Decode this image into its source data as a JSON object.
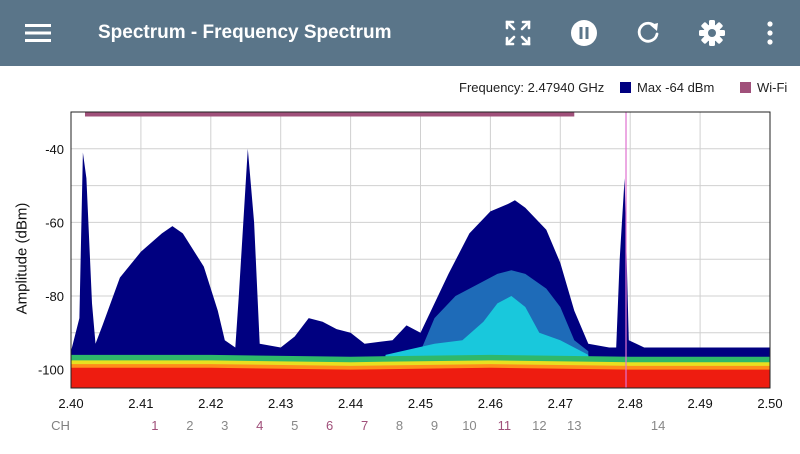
{
  "toolbar": {
    "title": "Spectrum - Frequency Spectrum",
    "icons": [
      "menu-icon",
      "fullscreen-icon",
      "pause-icon",
      "refresh-icon",
      "settings-icon",
      "more-vert-icon"
    ]
  },
  "legend": {
    "frequency": "Frequency: 2.47940 GHz",
    "max_label": "Max -64 dBm",
    "max_color": "#000080",
    "wifi_label": "Wi-Fi",
    "wifi_color": "#a0507a"
  },
  "chart_data": {
    "type": "area",
    "ylabel": "Amplitude (dBm)",
    "xlim": [
      2.4,
      2.5
    ],
    "ylim": [
      -105,
      -30
    ],
    "x_ticks": [
      "2.40",
      "2.41",
      "2.42",
      "2.43",
      "2.44",
      "2.45",
      "2.46",
      "2.47",
      "2.48",
      "2.49",
      "2.50"
    ],
    "y_ticks": [
      -40,
      -60,
      -80,
      -100
    ],
    "grid": true,
    "wifi_band": [
      2.402,
      2.472
    ],
    "marker_frequency": 2.4794,
    "max_trace": [
      [
        2.4,
        -95
      ],
      [
        2.4012,
        -86
      ],
      [
        2.4017,
        -41
      ],
      [
        2.4022,
        -48
      ],
      [
        2.403,
        -82
      ],
      [
        2.4035,
        -93
      ],
      [
        2.4045,
        -88
      ],
      [
        2.407,
        -75
      ],
      [
        2.41,
        -68
      ],
      [
        2.413,
        -63
      ],
      [
        2.4145,
        -61
      ],
      [
        2.416,
        -63
      ],
      [
        2.419,
        -72
      ],
      [
        2.421,
        -84
      ],
      [
        2.422,
        -92
      ],
      [
        2.4235,
        -94
      ],
      [
        2.424,
        -80
      ],
      [
        2.4253,
        -40
      ],
      [
        2.4262,
        -60
      ],
      [
        2.427,
        -93
      ],
      [
        2.43,
        -94
      ],
      [
        2.432,
        -91
      ],
      [
        2.434,
        -86
      ],
      [
        2.436,
        -87
      ],
      [
        2.438,
        -89
      ],
      [
        2.44,
        -90
      ],
      [
        2.442,
        -93
      ],
      [
        2.446,
        -92
      ],
      [
        2.448,
        -88
      ],
      [
        2.45,
        -90
      ],
      [
        2.4515,
        -84
      ],
      [
        2.454,
        -74
      ],
      [
        2.457,
        -63
      ],
      [
        2.46,
        -57
      ],
      [
        2.4625,
        -55
      ],
      [
        2.4635,
        -54
      ],
      [
        2.465,
        -56
      ],
      [
        2.468,
        -62
      ],
      [
        2.47,
        -71
      ],
      [
        2.472,
        -84
      ],
      [
        2.474,
        -93
      ],
      [
        2.477,
        -94
      ],
      [
        2.478,
        -94
      ],
      [
        2.4785,
        -70
      ],
      [
        2.4792,
        -48
      ],
      [
        2.4798,
        -92
      ],
      [
        2.482,
        -94
      ],
      [
        2.49,
        -94
      ],
      [
        2.5,
        -94
      ]
    ],
    "fill_layers": [
      {
        "name": "",
        "color": "#1e6bb8",
        "points": [
          [
            2.45,
            -95
          ],
          [
            2.452,
            -86
          ],
          [
            2.455,
            -80
          ],
          [
            2.458,
            -77
          ],
          [
            2.461,
            -74
          ],
          [
            2.463,
            -73
          ],
          [
            2.465,
            -74
          ],
          [
            2.468,
            -78
          ],
          [
            2.47,
            -83
          ],
          [
            2.472,
            -92
          ],
          [
            2.474,
            -95
          ]
        ]
      },
      {
        "name": "",
        "color": "#19c8dc",
        "points": [
          [
            2.445,
            -96
          ],
          [
            2.452,
            -93
          ],
          [
            2.456,
            -92
          ],
          [
            2.459,
            -87
          ],
          [
            2.461,
            -82
          ],
          [
            2.463,
            -80
          ],
          [
            2.465,
            -83
          ],
          [
            2.467,
            -90
          ],
          [
            2.47,
            -92
          ],
          [
            2.474,
            -96
          ]
        ]
      },
      {
        "name": "",
        "color": "#2fb86a",
        "points": [
          [
            2.4,
            -96
          ],
          [
            2.42,
            -96
          ],
          [
            2.44,
            -96.5
          ],
          [
            2.46,
            -96
          ],
          [
            2.48,
            -96.5
          ],
          [
            2.5,
            -96.5
          ]
        ]
      },
      {
        "name": "",
        "color": "#e8e020",
        "points": [
          [
            2.4,
            -97.5
          ],
          [
            2.42,
            -97.5
          ],
          [
            2.44,
            -98
          ],
          [
            2.46,
            -97.5
          ],
          [
            2.48,
            -98
          ],
          [
            2.5,
            -98
          ]
        ]
      },
      {
        "name": "",
        "color": "#ff8c1a",
        "points": [
          [
            2.4,
            -98.5
          ],
          [
            2.42,
            -98.5
          ],
          [
            2.44,
            -99
          ],
          [
            2.46,
            -98.5
          ],
          [
            2.48,
            -99
          ],
          [
            2.5,
            -99
          ]
        ]
      },
      {
        "name": "",
        "color": "#ee1c10",
        "points": [
          [
            2.4,
            -99.5
          ],
          [
            2.42,
            -99.5
          ],
          [
            2.44,
            -100
          ],
          [
            2.46,
            -99.5
          ],
          [
            2.48,
            -100
          ],
          [
            2.5,
            -100
          ]
        ]
      }
    ],
    "channels": [
      {
        "label": "CH",
        "freq": 2.3985,
        "color": "#808080"
      },
      {
        "label": "1",
        "freq": 2.412,
        "color": "#a0507a"
      },
      {
        "label": "2",
        "freq": 2.417,
        "color": "#888888"
      },
      {
        "label": "3",
        "freq": 2.422,
        "color": "#888888"
      },
      {
        "label": "4",
        "freq": 2.427,
        "color": "#a0507a"
      },
      {
        "label": "5",
        "freq": 2.432,
        "color": "#888888"
      },
      {
        "label": "6",
        "freq": 2.437,
        "color": "#a0507a"
      },
      {
        "label": "7",
        "freq": 2.442,
        "color": "#a0507a"
      },
      {
        "label": "8",
        "freq": 2.447,
        "color": "#888888"
      },
      {
        "label": "9",
        "freq": 2.452,
        "color": "#888888"
      },
      {
        "label": "10",
        "freq": 2.457,
        "color": "#888888"
      },
      {
        "label": "11",
        "freq": 2.462,
        "color": "#a0507a"
      },
      {
        "label": "12",
        "freq": 2.467,
        "color": "#888888"
      },
      {
        "label": "13",
        "freq": 2.472,
        "color": "#888888"
      },
      {
        "label": "14",
        "freq": 2.484,
        "color": "#888888"
      }
    ]
  }
}
